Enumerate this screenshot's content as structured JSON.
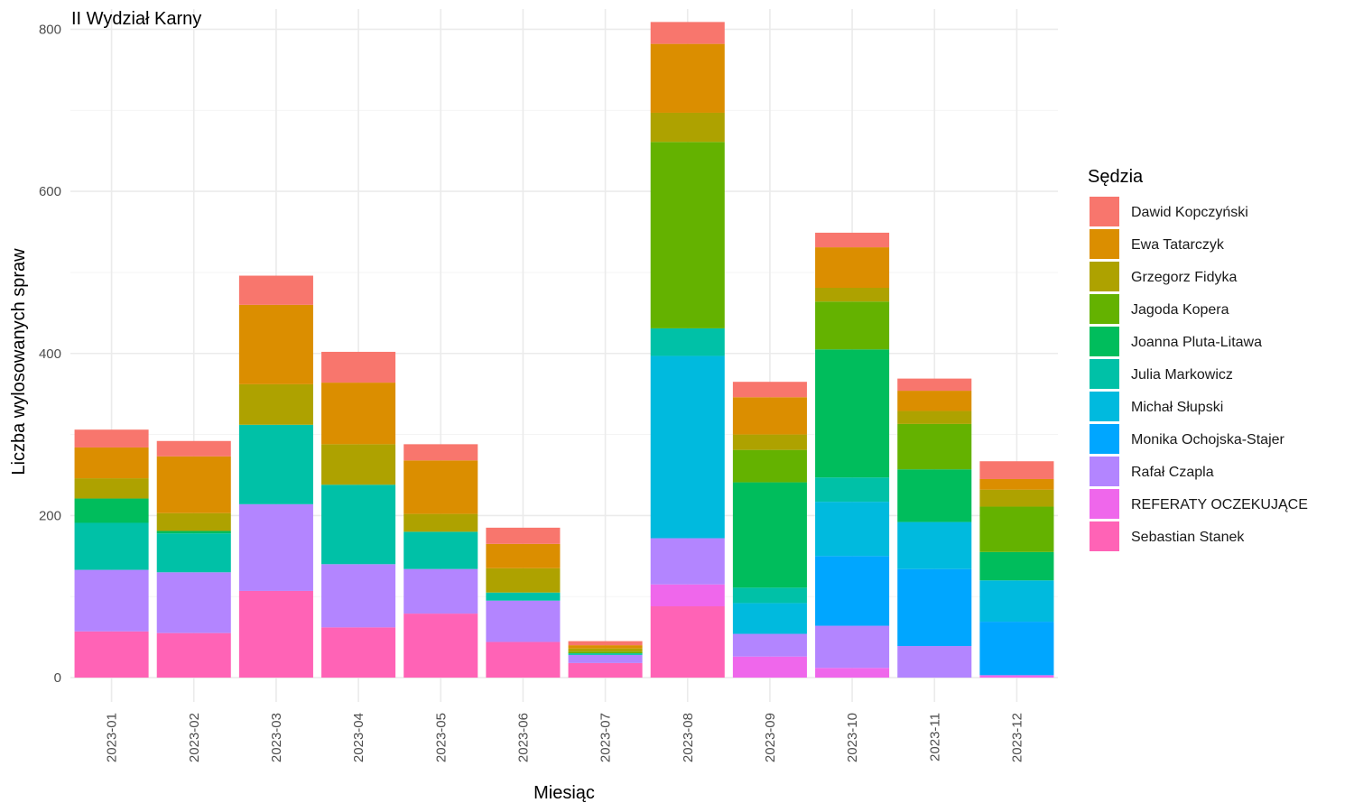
{
  "chart_data": {
    "type": "bar",
    "stacked": true,
    "title": "II Wydział Karny",
    "xlabel": "Miesiąc",
    "ylabel": "Liczba wylosowanych spraw",
    "ylim": [
      -30,
      825
    ],
    "yticks": [
      0,
      200,
      400,
      600,
      800
    ],
    "grid": true,
    "legend_title": "Sędzia",
    "legend_position": "right",
    "categories": [
      "2023-01",
      "2023-02",
      "2023-03",
      "2023-04",
      "2023-05",
      "2023-06",
      "2023-07",
      "2023-08",
      "2023-09",
      "2023-10",
      "2023-11",
      "2023-12"
    ],
    "series": [
      {
        "name": "Dawid Kopczyński",
        "color": "#F8766D",
        "values": [
          22,
          19,
          36,
          38,
          20,
          20,
          5,
          27,
          19,
          18,
          15,
          22
        ]
      },
      {
        "name": "Ewa Tatarczyk",
        "color": "#DB8E00",
        "values": [
          38,
          70,
          98,
          76,
          66,
          30,
          4,
          85,
          46,
          50,
          25,
          13
        ]
      },
      {
        "name": "Grzegorz Fidyka",
        "color": "#AEA200",
        "values": [
          25,
          22,
          50,
          50,
          22,
          30,
          4,
          36,
          19,
          17,
          16,
          21
        ]
      },
      {
        "name": "Jagoda Kopera",
        "color": "#64B200",
        "values": [
          0,
          0,
          0,
          0,
          0,
          0,
          2,
          230,
          40,
          59,
          56,
          56
        ]
      },
      {
        "name": "Joanna Pluta-Litawa",
        "color": "#00BD5C",
        "values": [
          30,
          3,
          0,
          0,
          0,
          0,
          0,
          0,
          130,
          158,
          65,
          35
        ]
      },
      {
        "name": "Julia Markowicz",
        "color": "#00C1A7",
        "values": [
          58,
          48,
          98,
          98,
          46,
          10,
          2,
          34,
          19,
          30,
          0,
          0
        ]
      },
      {
        "name": "Michał Słupski",
        "color": "#00BADE",
        "values": [
          0,
          0,
          0,
          0,
          0,
          0,
          0,
          225,
          38,
          67,
          58,
          51
        ]
      },
      {
        "name": "Monika Ochojska-Stajer",
        "color": "#00A6FF",
        "values": [
          0,
          0,
          0,
          0,
          0,
          0,
          0,
          0,
          0,
          86,
          95,
          66
        ]
      },
      {
        "name": "Rafał Czapla",
        "color": "#B385FF",
        "values": [
          76,
          75,
          107,
          78,
          55,
          51,
          10,
          57,
          28,
          52,
          39,
          0
        ]
      },
      {
        "name": "REFERATY OCZEKUJĄCE",
        "color": "#EF67EB",
        "values": [
          0,
          0,
          0,
          0,
          0,
          0,
          0,
          27,
          26,
          12,
          0,
          3
        ]
      },
      {
        "name": "Sebastian Stanek",
        "color": "#FF63B6",
        "values": [
          57,
          55,
          107,
          62,
          79,
          44,
          18,
          88,
          0,
          0,
          0,
          0
        ]
      }
    ]
  }
}
